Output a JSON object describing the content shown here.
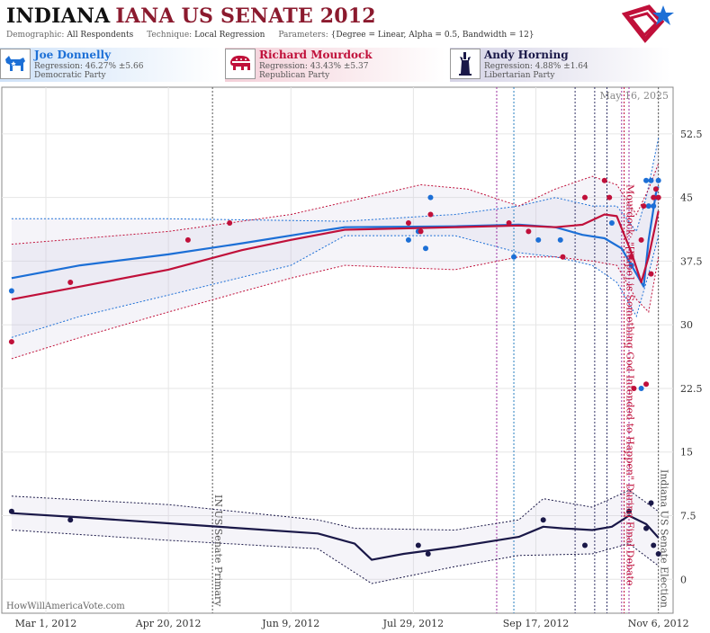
{
  "header": {
    "state": "INDIANA",
    "race": "IANA US SENATE 2012",
    "demographic_label": "Demographic:",
    "demographic_value": "All Respondents",
    "technique_label": "Technique:",
    "technique_value": "Local Regression",
    "parameters_label": "Parameters:",
    "parameters_value": "{Degree = Linear, Alpha = 0.5, Bandwidth = 12}"
  },
  "candidates": [
    {
      "name": "Joe Donnelly",
      "regression": "Regression: 46.27% ±5.66",
      "party": "Democratic Party",
      "color": "#1c6fd6",
      "icon": "donkey-icon"
    },
    {
      "name": "Richard Mourdock",
      "regression": "Regression: 43.43% ±5.37",
      "party": "Republican Party",
      "color": "#c0103a",
      "icon": "elephant-icon"
    },
    {
      "name": "Andy Horning",
      "regression": "Regression: 4.88% ±1.64",
      "party": "Libertarian Party",
      "color": "#1a1848",
      "icon": "liberty-icon"
    }
  ],
  "footer": {
    "watermark": "HowWillAmericaVote.com"
  },
  "chart_data": {
    "type": "scatter",
    "date_stamp": "May 16, 2025",
    "ylim": [
      -4,
      58
    ],
    "xlim": [
      "2012-02-12",
      "2012-11-12"
    ],
    "y_ticks": [
      0,
      7.5,
      15,
      22.5,
      30,
      37.5,
      45,
      52.5
    ],
    "y_tick_labels": [
      "0",
      "7.5",
      "15",
      "22.5",
      "30",
      "37.5",
      "45",
      "52.5"
    ],
    "x_ticks": [
      "2012-03-01",
      "2012-04-20",
      "2012-06-09",
      "2012-07-29",
      "2012-09-17",
      "2012-11-06"
    ],
    "x_tick_labels": [
      "Mar 1, 2012",
      "Apr 20, 2012",
      "Jun 9, 2012",
      "Jul 29, 2012",
      "Sep 17, 2012",
      "Nov 6, 2012"
    ],
    "grid": true,
    "events": [
      {
        "date": "2012-05-08",
        "label": "IN US Senate Primary",
        "color": "#555555"
      },
      {
        "date": "2012-10-23",
        "label": "Mourdock: \"[Rape] is Something God Intended to Happen\" During Final Debate",
        "color": "#c0103a"
      },
      {
        "date": "2012-11-06",
        "label": "Indiana US Senate Election",
        "color": "#555555"
      }
    ],
    "event_markers": [
      {
        "date": "2012-09-01",
        "color": "#9b30a0"
      },
      {
        "date": "2012-09-08",
        "color": "#2a7fc0"
      },
      {
        "date": "2012-10-03",
        "color": "#333366"
      },
      {
        "date": "2012-10-11",
        "color": "#333366"
      },
      {
        "date": "2012-10-16",
        "color": "#333366"
      },
      {
        "date": "2012-10-22",
        "color": "#9b30a0"
      },
      {
        "date": "2012-10-25",
        "color": "#9b30a0"
      }
    ],
    "series": [
      {
        "name": "Joe Donnelly",
        "color": "#1c6fd6",
        "points": [
          [
            "2012-02-16",
            34
          ],
          [
            "2012-07-27",
            40
          ],
          [
            "2012-07-31",
            41
          ],
          [
            "2012-08-03",
            39
          ],
          [
            "2012-08-05",
            45
          ],
          [
            "2012-09-08",
            38
          ],
          [
            "2012-09-18",
            40
          ],
          [
            "2012-09-27",
            40
          ],
          [
            "2012-10-18",
            42
          ],
          [
            "2012-10-26",
            37
          ],
          [
            "2012-10-30",
            22.5
          ],
          [
            "2012-11-01",
            47
          ],
          [
            "2012-11-02",
            44
          ],
          [
            "2012-11-03",
            47
          ],
          [
            "2012-11-04",
            44
          ],
          [
            "2012-11-05",
            45
          ],
          [
            "2012-11-06",
            47
          ]
        ],
        "trend": [
          [
            "2012-02-16",
            35.5
          ],
          [
            "2012-03-15",
            37
          ],
          [
            "2012-04-20",
            38.3
          ],
          [
            "2012-05-20",
            39.6
          ],
          [
            "2012-06-15",
            40.8
          ],
          [
            "2012-07-01",
            41.5
          ],
          [
            "2012-08-15",
            41.6
          ],
          [
            "2012-09-10",
            41.8
          ],
          [
            "2012-09-25",
            41.5
          ],
          [
            "2012-10-06",
            40.6
          ],
          [
            "2012-10-15",
            40.2
          ],
          [
            "2012-10-22",
            39
          ],
          [
            "2012-10-28",
            36
          ],
          [
            "2012-10-31",
            34.5
          ],
          [
            "2012-11-02",
            40
          ],
          [
            "2012-11-05",
            45.5
          ],
          [
            "2012-11-06",
            46.3
          ]
        ],
        "upper": [
          [
            "2012-02-16",
            42.5
          ],
          [
            "2012-04-20",
            42.5
          ],
          [
            "2012-07-01",
            42.2
          ],
          [
            "2012-08-15",
            43
          ],
          [
            "2012-09-10",
            44
          ],
          [
            "2012-09-25",
            45
          ],
          [
            "2012-10-10",
            44
          ],
          [
            "2012-10-20",
            44
          ],
          [
            "2012-10-28",
            41
          ],
          [
            "2012-11-01",
            45
          ],
          [
            "2012-11-06",
            52
          ]
        ],
        "lower": [
          [
            "2012-02-16",
            28.5
          ],
          [
            "2012-03-15",
            31
          ],
          [
            "2012-04-20",
            33.5
          ],
          [
            "2012-06-09",
            37
          ],
          [
            "2012-07-01",
            40.5
          ],
          [
            "2012-08-15",
            40.5
          ],
          [
            "2012-09-10",
            38.5
          ],
          [
            "2012-09-25",
            38
          ],
          [
            "2012-10-10",
            37
          ],
          [
            "2012-10-20",
            35
          ],
          [
            "2012-10-28",
            31
          ],
          [
            "2012-11-02",
            36
          ],
          [
            "2012-11-06",
            40.5
          ]
        ]
      },
      {
        "name": "Richard Mourdock",
        "color": "#c0103a",
        "points": [
          [
            "2012-02-16",
            28
          ],
          [
            "2012-03-11",
            35
          ],
          [
            "2012-04-28",
            40
          ],
          [
            "2012-05-15",
            42
          ],
          [
            "2012-07-27",
            42
          ],
          [
            "2012-08-01",
            41
          ],
          [
            "2012-08-05",
            43
          ],
          [
            "2012-09-06",
            42
          ],
          [
            "2012-09-14",
            41
          ],
          [
            "2012-09-28",
            38
          ],
          [
            "2012-10-07",
            45
          ],
          [
            "2012-10-15",
            47
          ],
          [
            "2012-10-17",
            45
          ],
          [
            "2012-10-26",
            38
          ],
          [
            "2012-10-27",
            22.5
          ],
          [
            "2012-10-30",
            40
          ],
          [
            "2012-10-31",
            44
          ],
          [
            "2012-11-01",
            23
          ],
          [
            "2012-11-03",
            36
          ],
          [
            "2012-11-04",
            45
          ],
          [
            "2012-11-05",
            46
          ],
          [
            "2012-11-06",
            45
          ]
        ],
        "trend": [
          [
            "2012-02-16",
            33
          ],
          [
            "2012-03-15",
            34.5
          ],
          [
            "2012-04-20",
            36.5
          ],
          [
            "2012-05-20",
            38.8
          ],
          [
            "2012-06-09",
            40
          ],
          [
            "2012-07-01",
            41.2
          ],
          [
            "2012-08-15",
            41.5
          ],
          [
            "2012-09-10",
            41.7
          ],
          [
            "2012-09-25",
            41.5
          ],
          [
            "2012-10-06",
            41.8
          ],
          [
            "2012-10-15",
            43
          ],
          [
            "2012-10-20",
            42.8
          ],
          [
            "2012-10-26",
            38.5
          ],
          [
            "2012-10-30",
            35
          ],
          [
            "2012-11-02",
            38
          ],
          [
            "2012-11-06",
            43.4
          ]
        ],
        "upper": [
          [
            "2012-02-16",
            39.5
          ],
          [
            "2012-04-20",
            41
          ],
          [
            "2012-06-09",
            43
          ],
          [
            "2012-08-01",
            46.5
          ],
          [
            "2012-08-20",
            46
          ],
          [
            "2012-09-10",
            44
          ],
          [
            "2012-09-25",
            46
          ],
          [
            "2012-10-10",
            47.5
          ],
          [
            "2012-10-20",
            46.5
          ],
          [
            "2012-10-28",
            43
          ],
          [
            "2012-11-02",
            46
          ],
          [
            "2012-11-06",
            49
          ]
        ],
        "upper_note": "",
        "lower": [
          [
            "2012-02-16",
            26
          ],
          [
            "2012-03-15",
            28.5
          ],
          [
            "2012-04-20",
            31.5
          ],
          [
            "2012-06-09",
            35.5
          ],
          [
            "2012-07-01",
            37
          ],
          [
            "2012-08-15",
            36.5
          ],
          [
            "2012-09-10",
            38
          ],
          [
            "2012-09-25",
            38
          ],
          [
            "2012-10-10",
            37.5
          ],
          [
            "2012-10-20",
            37
          ],
          [
            "2012-10-28",
            33
          ],
          [
            "2012-11-02",
            31.5
          ],
          [
            "2012-11-06",
            38
          ]
        ]
      },
      {
        "name": "Andy Horning",
        "color": "#1a1848",
        "points": [
          [
            "2012-02-16",
            8
          ],
          [
            "2012-03-11",
            7
          ],
          [
            "2012-07-31",
            4
          ],
          [
            "2012-08-04",
            3
          ],
          [
            "2012-09-20",
            7
          ],
          [
            "2012-10-07",
            4
          ],
          [
            "2012-10-25",
            8
          ],
          [
            "2012-11-01",
            6
          ],
          [
            "2012-11-03",
            9
          ],
          [
            "2012-11-04",
            4
          ],
          [
            "2012-11-06",
            3
          ]
        ],
        "trend": [
          [
            "2012-02-16",
            7.8
          ],
          [
            "2012-03-15",
            7.3
          ],
          [
            "2012-04-20",
            6.6
          ],
          [
            "2012-05-20",
            6.0
          ],
          [
            "2012-06-20",
            5.4
          ],
          [
            "2012-07-05",
            4.2
          ],
          [
            "2012-07-12",
            2.3
          ],
          [
            "2012-07-25",
            3.0
          ],
          [
            "2012-08-15",
            3.8
          ],
          [
            "2012-09-10",
            5.0
          ],
          [
            "2012-09-20",
            6.2
          ],
          [
            "2012-09-28",
            6.0
          ],
          [
            "2012-10-10",
            5.8
          ],
          [
            "2012-10-18",
            6.2
          ],
          [
            "2012-10-25",
            7.5
          ],
          [
            "2012-11-01",
            6.5
          ],
          [
            "2012-11-06",
            4.9
          ]
        ],
        "upper": [
          [
            "2012-02-16",
            9.8
          ],
          [
            "2012-04-20",
            8.8
          ],
          [
            "2012-06-20",
            7.0
          ],
          [
            "2012-07-05",
            6.0
          ],
          [
            "2012-08-15",
            5.8
          ],
          [
            "2012-09-10",
            7.0
          ],
          [
            "2012-09-20",
            9.5
          ],
          [
            "2012-10-10",
            8.5
          ],
          [
            "2012-10-25",
            10.5
          ],
          [
            "2012-11-06",
            8.0
          ]
        ],
        "lower": [
          [
            "2012-02-16",
            5.8
          ],
          [
            "2012-04-20",
            4.6
          ],
          [
            "2012-06-20",
            3.6
          ],
          [
            "2012-07-12",
            -0.5
          ],
          [
            "2012-08-15",
            1.5
          ],
          [
            "2012-09-10",
            2.8
          ],
          [
            "2012-10-10",
            3.0
          ],
          [
            "2012-10-25",
            4.2
          ],
          [
            "2012-11-06",
            1.6
          ]
        ]
      }
    ]
  }
}
